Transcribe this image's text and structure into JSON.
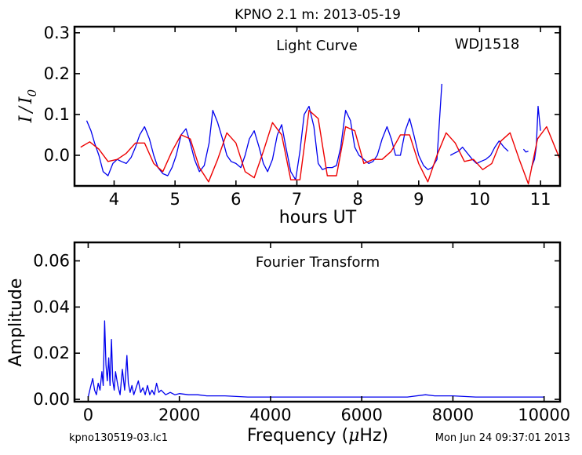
{
  "header": {
    "title": "KPNO 2.1 m:  2013-05-19",
    "footer_left": "kpno130519-03.lc1",
    "footer_right": "Mon Jun 24 09:37:01 2013"
  },
  "colors": {
    "data": "#0000ee",
    "model": "#ee0000",
    "axes": "#000000"
  },
  "chart_data": [
    {
      "type": "line",
      "annotation": "Light Curve",
      "object_label": "WDJ1518",
      "xlabel": "hours UT",
      "ylabel_main": "I",
      "ylabel_sep": "/",
      "ylabel_sub_base": "I",
      "ylabel_sub": "0",
      "xlim": [
        3.35,
        11.32
      ],
      "ylim": [
        -0.075,
        0.315
      ],
      "xticks": [
        4,
        5,
        6,
        7,
        8,
        9,
        10,
        11
      ],
      "xtick_labels": [
        "4",
        "5",
        "6",
        "7",
        "8",
        "9",
        "10",
        "11"
      ],
      "yticks": [
        0.0,
        0.1,
        0.2,
        0.3
      ],
      "ytick_labels": [
        "0.0",
        "0.1",
        "0.2",
        "0.3"
      ],
      "grid": false,
      "series": [
        {
          "role": "data",
          "x": [
            3.55,
            3.62,
            3.68,
            3.75,
            3.82,
            3.9,
            3.98,
            4.05,
            4.12,
            4.2,
            4.28,
            4.35,
            4.42,
            4.5,
            4.58,
            4.65,
            4.72,
            4.8,
            4.88,
            4.95,
            5.02,
            5.1,
            5.18,
            5.25,
            5.32,
            5.4,
            5.48,
            5.56,
            5.62,
            5.7,
            5.78,
            5.85,
            5.92,
            6.0,
            6.08,
            6.15,
            6.22,
            6.3,
            6.38,
            6.45,
            6.52,
            6.6,
            6.68,
            6.75,
            6.82,
            6.9,
            6.98,
            7.05,
            7.12,
            7.2,
            7.28,
            7.35,
            7.42,
            7.5,
            7.58,
            7.65,
            7.72,
            7.8,
            7.88,
            7.95,
            8.02,
            8.1,
            8.18,
            8.25,
            8.32,
            8.4,
            8.48,
            8.55,
            8.62,
            8.7,
            8.78,
            8.85,
            8.92,
            9.0,
            9.08,
            9.15,
            9.22,
            9.3,
            9.38
          ],
          "y": [
            0.085,
            0.06,
            0.03,
            0.0,
            -0.04,
            -0.05,
            -0.02,
            -0.01,
            -0.015,
            -0.02,
            -0.005,
            0.02,
            0.05,
            0.07,
            0.04,
            0.0,
            -0.03,
            -0.045,
            -0.05,
            -0.03,
            0.0,
            0.05,
            0.065,
            0.03,
            -0.01,
            -0.04,
            -0.025,
            0.03,
            0.11,
            0.08,
            0.04,
            0.0,
            -0.015,
            -0.02,
            -0.03,
            0.0,
            0.04,
            0.06,
            0.02,
            -0.02,
            -0.04,
            -0.01,
            0.05,
            0.075,
            0.02,
            -0.04,
            -0.06,
            0.01,
            0.1,
            0.12,
            0.07,
            -0.02,
            -0.035,
            -0.03,
            -0.03,
            -0.025,
            0.02,
            0.11,
            0.085,
            0.02,
            0.0,
            -0.01,
            -0.02,
            -0.015,
            0.0,
            0.04,
            0.07,
            0.04,
            0.0,
            0.0,
            0.06,
            0.09,
            0.05,
            0.0,
            -0.025,
            -0.035,
            -0.03,
            -0.01,
            0.175
          ]
        },
        {
          "role": "data",
          "x": [
            9.52,
            9.58,
            9.65,
            9.72,
            9.8,
            9.88,
            9.95,
            10.02,
            10.1,
            10.18,
            10.25,
            10.32,
            10.4,
            10.47
          ],
          "y": [
            0.0,
            0.005,
            0.01,
            0.02,
            0.005,
            -0.01,
            -0.02,
            -0.015,
            -0.01,
            0.0,
            0.02,
            0.035,
            0.02,
            0.01
          ]
        },
        {
          "role": "data",
          "x": [
            10.72,
            10.76,
            10.8
          ],
          "y": [
            0.015,
            0.008,
            0.01
          ]
        },
        {
          "role": "data",
          "x": [
            10.85,
            10.9,
            10.93,
            10.96,
            11.0
          ],
          "y": [
            -0.03,
            -0.01,
            0.02,
            0.12,
            0.06
          ]
        },
        {
          "role": "model",
          "x": [
            3.45,
            3.6,
            3.75,
            3.9,
            4.05,
            4.2,
            4.35,
            4.5,
            4.65,
            4.8,
            4.95,
            5.1,
            5.25,
            5.4,
            5.55,
            5.7,
            5.85,
            6.0,
            6.15,
            6.3,
            6.45,
            6.6,
            6.75,
            6.9,
            7.05,
            7.2,
            7.35,
            7.5,
            7.65,
            7.8,
            7.95,
            8.1,
            8.25,
            8.4,
            8.55,
            8.7,
            8.85,
            9.0,
            9.15,
            9.3,
            9.45,
            9.6,
            9.75,
            9.9,
            10.05,
            10.2,
            10.35,
            10.5,
            10.65,
            10.8,
            10.95,
            11.1,
            11.25,
            11.32
          ],
          "y": [
            0.02,
            0.033,
            0.015,
            -0.015,
            -0.01,
            0.005,
            0.03,
            0.03,
            -0.02,
            -0.04,
            0.01,
            0.05,
            0.04,
            -0.03,
            -0.065,
            -0.01,
            0.055,
            0.03,
            -0.04,
            -0.055,
            0.01,
            0.08,
            0.05,
            -0.06,
            -0.06,
            0.11,
            0.09,
            -0.05,
            -0.05,
            0.07,
            0.06,
            -0.02,
            -0.01,
            -0.01,
            0.01,
            0.05,
            0.05,
            -0.02,
            -0.065,
            0.0,
            0.055,
            0.03,
            -0.015,
            -0.01,
            -0.035,
            -0.02,
            0.035,
            0.055,
            -0.01,
            -0.07,
            0.04,
            0.07,
            0.015,
            -0.01
          ]
        }
      ]
    },
    {
      "type": "line",
      "annotation": "Fourier Transform",
      "xlabel_prefix": "Frequency (",
      "xlabel_mu": "μ",
      "xlabel_suffix": "Hz)",
      "ylabel": "Amplitude",
      "xlim": [
        -300,
        10350
      ],
      "ylim": [
        -0.001,
        0.068
      ],
      "xticks": [
        0,
        2000,
        4000,
        6000,
        8000,
        10000
      ],
      "xtick_labels": [
        "0",
        "2000",
        "4000",
        "6000",
        "8000",
        "10000"
      ],
      "yticks": [
        0.0,
        0.02,
        0.04,
        0.06
      ],
      "ytick_labels": [
        "0.00",
        "0.02",
        "0.04",
        "0.06"
      ],
      "grid": false,
      "series": [
        {
          "role": "data",
          "x": [
            0,
            60,
            100,
            140,
            180,
            220,
            260,
            300,
            330,
            360,
            390,
            420,
            450,
            480,
            510,
            540,
            570,
            600,
            650,
            700,
            750,
            800,
            850,
            880,
            920,
            960,
            1000,
            1050,
            1100,
            1150,
            1200,
            1250,
            1300,
            1350,
            1400,
            1450,
            1500,
            1550,
            1600,
            1700,
            1800,
            1900,
            2000,
            2200,
            2400,
            2600,
            2800,
            3000,
            3500,
            4000,
            4500,
            5000,
            5500,
            6000,
            6500,
            7000,
            7400,
            7600,
            8000,
            8500,
            9000,
            9500,
            10000
          ],
          "y": [
            0.001,
            0.006,
            0.009,
            0.004,
            0.002,
            0.007,
            0.004,
            0.012,
            0.006,
            0.034,
            0.015,
            0.008,
            0.018,
            0.006,
            0.026,
            0.008,
            0.004,
            0.012,
            0.006,
            0.002,
            0.013,
            0.004,
            0.019,
            0.007,
            0.003,
            0.006,
            0.002,
            0.005,
            0.008,
            0.003,
            0.005,
            0.002,
            0.006,
            0.002,
            0.004,
            0.002,
            0.007,
            0.003,
            0.004,
            0.002,
            0.003,
            0.002,
            0.0025,
            0.002,
            0.002,
            0.0015,
            0.0015,
            0.0015,
            0.001,
            0.001,
            0.001,
            0.001,
            0.001,
            0.001,
            0.001,
            0.001,
            0.002,
            0.0015,
            0.0015,
            0.001,
            0.001,
            0.001,
            0.001
          ]
        }
      ]
    }
  ]
}
